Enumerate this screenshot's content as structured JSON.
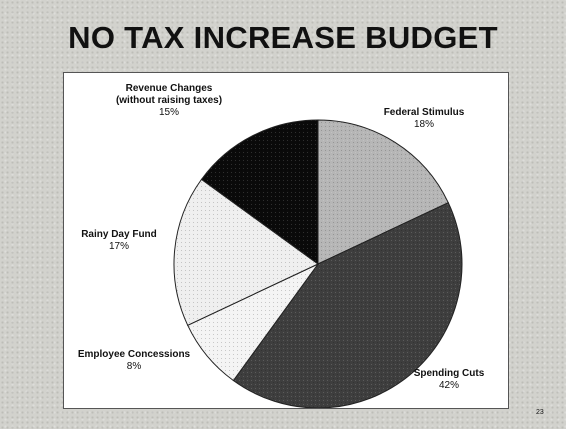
{
  "slide": {
    "title": "NO TAX INCREASE BUDGET",
    "page_number": "23"
  },
  "chart_data": {
    "type": "pie",
    "title": "NO TAX INCREASE BUDGET",
    "slices": [
      {
        "label": "Federal Stimulus",
        "value": 18,
        "value_label": "18%",
        "color": "#b6b6b6"
      },
      {
        "label": "Spending Cuts",
        "value": 42,
        "value_label": "42%",
        "color": "#3e3e3e"
      },
      {
        "label": "Employee Concessions",
        "value": 8,
        "value_label": "8%",
        "color": "#f4f4f4"
      },
      {
        "label": "Rainy Day Fund",
        "value": 17,
        "value_label": "17%",
        "color": "#efefef"
      },
      {
        "label": "Revenue Changes\n(without raising taxes)",
        "value": 15,
        "value_label": "15%",
        "color": "#0a0a0a"
      }
    ]
  }
}
